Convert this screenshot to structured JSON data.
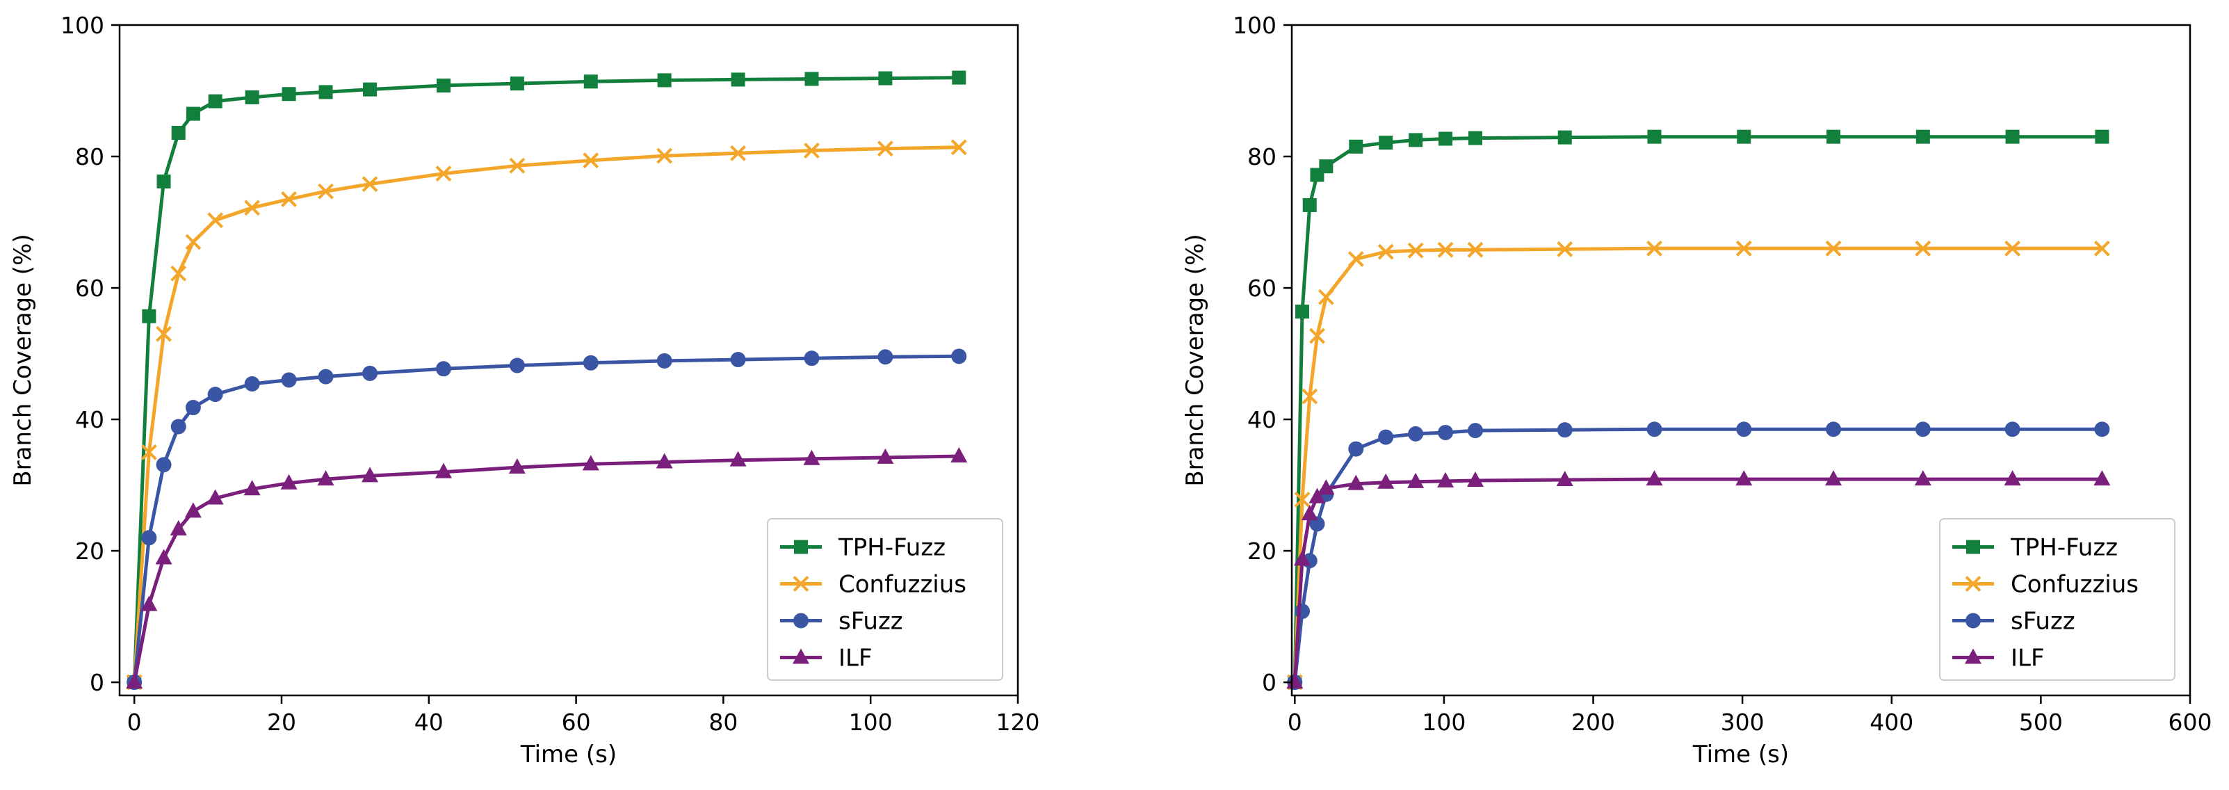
{
  "chart_data": [
    {
      "type": "line",
      "xlabel": "Time (s)",
      "ylabel": "Branch Coverage (%)",
      "xlim": [
        -2,
        120
      ],
      "ylim": [
        -2,
        100
      ],
      "xticks": [
        0,
        20,
        40,
        60,
        80,
        100,
        120
      ],
      "yticks": [
        0,
        20,
        40,
        60,
        80,
        100
      ],
      "grid": false,
      "legend_position": "bottom-right",
      "series": [
        {
          "name": "TPH-Fuzz",
          "color": "#12803c",
          "marker": "square",
          "x": [
            0,
            2,
            4,
            6,
            8,
            11,
            16,
            21,
            26,
            32,
            42,
            52,
            62,
            72,
            82,
            92,
            102,
            112
          ],
          "y": [
            0,
            55.7,
            76.2,
            83.6,
            86.5,
            88.4,
            89.0,
            89.5,
            89.8,
            90.2,
            90.8,
            91.1,
            91.4,
            91.6,
            91.7,
            91.8,
            91.9,
            92.0
          ]
        },
        {
          "name": "Confuzzius",
          "color": "#f4a62a",
          "marker": "x",
          "x": [
            0,
            2,
            4,
            6,
            8,
            11,
            16,
            21,
            26,
            32,
            42,
            52,
            62,
            72,
            82,
            92,
            102,
            112
          ],
          "y": [
            0,
            35.0,
            53.0,
            62.2,
            67.0,
            70.3,
            72.2,
            73.5,
            74.7,
            75.8,
            77.4,
            78.6,
            79.4,
            80.1,
            80.5,
            80.9,
            81.2,
            81.4
          ]
        },
        {
          "name": "sFuzz",
          "color": "#3a55a4",
          "marker": "circle",
          "x": [
            0,
            2,
            4,
            6,
            8,
            11,
            16,
            21,
            26,
            32,
            42,
            52,
            62,
            72,
            82,
            92,
            102,
            112
          ],
          "y": [
            0,
            22.0,
            33.1,
            38.9,
            41.8,
            43.8,
            45.4,
            46.0,
            46.5,
            47.0,
            47.7,
            48.2,
            48.6,
            48.9,
            49.1,
            49.3,
            49.5,
            49.6
          ]
        },
        {
          "name": "ILF",
          "color": "#7b1f7d",
          "marker": "triangle",
          "x": [
            0,
            2,
            4,
            6,
            8,
            11,
            16,
            21,
            26,
            32,
            42,
            52,
            62,
            72,
            82,
            92,
            102,
            112
          ],
          "y": [
            0,
            11.8,
            18.9,
            23.3,
            26.0,
            28.0,
            29.4,
            30.3,
            30.9,
            31.4,
            32.0,
            32.7,
            33.2,
            33.5,
            33.8,
            34.0,
            34.2,
            34.4
          ]
        }
      ]
    },
    {
      "type": "line",
      "xlabel": "Time (s)",
      "ylabel": "Branch Coverage (%)",
      "xlim": [
        -2,
        600
      ],
      "ylim": [
        -2,
        100
      ],
      "xticks": [
        0,
        100,
        200,
        300,
        400,
        500,
        600
      ],
      "yticks": [
        0,
        20,
        40,
        60,
        80,
        100
      ],
      "grid": false,
      "legend_position": "bottom-right",
      "series": [
        {
          "name": "TPH-Fuzz",
          "color": "#12803c",
          "marker": "square",
          "x": [
            0,
            5,
            10,
            15,
            21,
            41,
            61,
            81,
            101,
            121,
            181,
            241,
            301,
            361,
            421,
            481,
            541
          ],
          "y": [
            0,
            56.4,
            72.6,
            77.2,
            78.5,
            81.5,
            82.1,
            82.5,
            82.7,
            82.8,
            82.9,
            83.0,
            83.0,
            83.0,
            83.0,
            83.0,
            83.0
          ]
        },
        {
          "name": "Confuzzius",
          "color": "#f4a62a",
          "marker": "x",
          "x": [
            0,
            5,
            10,
            15,
            21,
            41,
            61,
            81,
            101,
            121,
            181,
            241,
            301,
            361,
            421,
            481,
            541
          ],
          "y": [
            0,
            27.8,
            43.5,
            52.7,
            58.6,
            64.4,
            65.5,
            65.7,
            65.8,
            65.8,
            65.9,
            66.0,
            66.0,
            66.0,
            66.0,
            66.0,
            66.0
          ]
        },
        {
          "name": "sFuzz",
          "color": "#3a55a4",
          "marker": "circle",
          "x": [
            0,
            5,
            10,
            15,
            21,
            41,
            61,
            81,
            101,
            121,
            181,
            241,
            301,
            361,
            421,
            481,
            541
          ],
          "y": [
            0,
            10.8,
            18.5,
            24.1,
            28.6,
            35.5,
            37.3,
            37.8,
            38.0,
            38.3,
            38.4,
            38.5,
            38.5,
            38.5,
            38.5,
            38.5,
            38.5
          ]
        },
        {
          "name": "ILF",
          "color": "#7b1f7d",
          "marker": "triangle",
          "x": [
            0,
            5,
            10,
            15,
            21,
            41,
            61,
            81,
            101,
            121,
            181,
            241,
            301,
            361,
            421,
            481,
            541
          ],
          "y": [
            0,
            18.7,
            25.6,
            28.2,
            29.5,
            30.2,
            30.4,
            30.5,
            30.6,
            30.7,
            30.8,
            30.9,
            30.9,
            30.9,
            30.9,
            30.9,
            30.9
          ]
        }
      ]
    }
  ]
}
